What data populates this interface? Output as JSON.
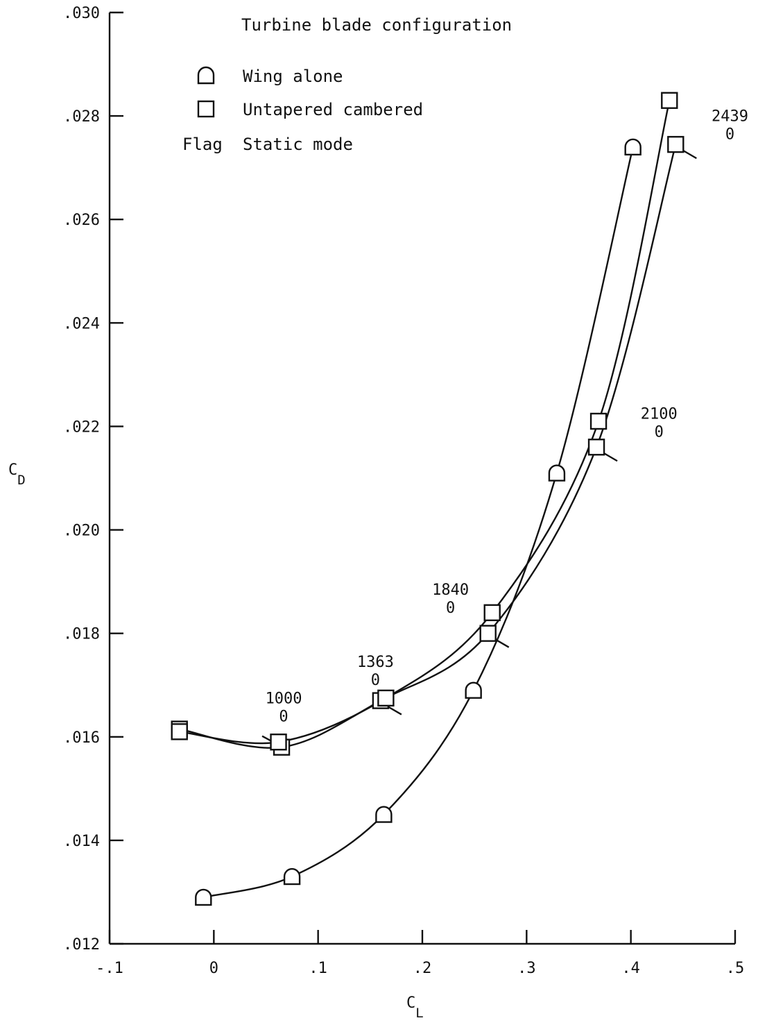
{
  "chart_data": {
    "type": "line",
    "title": "Turbine blade configuration",
    "xlabel": "C",
    "xlabel_sub": "L",
    "ylabel": "C",
    "ylabel_sub": "D",
    "xlim": [
      -0.1,
      0.5
    ],
    "ylim": [
      0.012,
      0.03
    ],
    "x_ticks": [
      -0.1,
      0,
      0.1,
      0.2,
      0.3,
      0.4,
      0.5
    ],
    "x_tick_labels": [
      "-.1",
      "0",
      ".1",
      ".2",
      ".3",
      ".4",
      ".5"
    ],
    "y_ticks": [
      0.012,
      0.014,
      0.016,
      0.018,
      0.02,
      0.022,
      0.024,
      0.026,
      0.028,
      0.03
    ],
    "y_tick_labels": [
      ".012",
      ".014",
      ".016",
      ".018",
      ".020",
      ".022",
      ".024",
      ".026",
      ".028",
      ".030"
    ],
    "grid": false,
    "legend_position": "top-left",
    "legend": [
      {
        "symbol": "half-round",
        "label": "Wing alone"
      },
      {
        "symbol": "square",
        "label": "Untapered cambered"
      },
      {
        "symbol": "flag-text",
        "prefix": "Flag",
        "label": "Static mode"
      }
    ],
    "series": [
      {
        "name": "Wing alone",
        "marker": "half-round",
        "points": [
          [
            -0.01,
            0.0129
          ],
          [
            0.075,
            0.0133
          ],
          [
            0.163,
            0.0145
          ],
          [
            0.249,
            0.0169
          ],
          [
            0.329,
            0.0211
          ],
          [
            0.402,
            0.0274
          ]
        ]
      },
      {
        "name": "Untapered cambered",
        "marker": "square",
        "points": [
          [
            -0.033,
            0.01615
          ],
          [
            0.065,
            0.0158
          ],
          [
            0.16,
            0.0167
          ],
          [
            0.263,
            0.018
          ],
          [
            0.367,
            0.0216
          ],
          [
            0.443,
            0.02745
          ]
        ],
        "flags": [
          {
            "x": 0.065,
            "y": 0.0158,
            "dir": "up-left"
          },
          {
            "x": 0.16,
            "y": 0.0167,
            "dir": "down-right"
          },
          {
            "x": 0.263,
            "y": 0.018,
            "dir": "down-right"
          },
          {
            "x": 0.367,
            "y": 0.0216,
            "dir": "down-right"
          },
          {
            "x": 0.443,
            "y": 0.02745,
            "dir": "down-right"
          }
        ]
      },
      {
        "name": "Untapered cambered",
        "marker": "square",
        "points": [
          [
            -0.033,
            0.0161
          ],
          [
            0.062,
            0.0159
          ],
          [
            0.165,
            0.01675
          ],
          [
            0.267,
            0.0184
          ],
          [
            0.369,
            0.0221
          ],
          [
            0.437,
            0.0283
          ]
        ]
      }
    ],
    "annotations": [
      {
        "x": 0.067,
        "y": 0.01665,
        "lines": [
          "1000",
          "0"
        ]
      },
      {
        "x": 0.155,
        "y": 0.01735,
        "lines": [
          "1363",
          "0"
        ]
      },
      {
        "x": 0.227,
        "y": 0.01875,
        "lines": [
          "1840",
          "0"
        ]
      },
      {
        "x": 0.427,
        "y": 0.02215,
        "lines": [
          "2100",
          "0"
        ]
      },
      {
        "x": 0.495,
        "y": 0.0279,
        "lines": [
          "2439",
          "0"
        ]
      }
    ]
  }
}
